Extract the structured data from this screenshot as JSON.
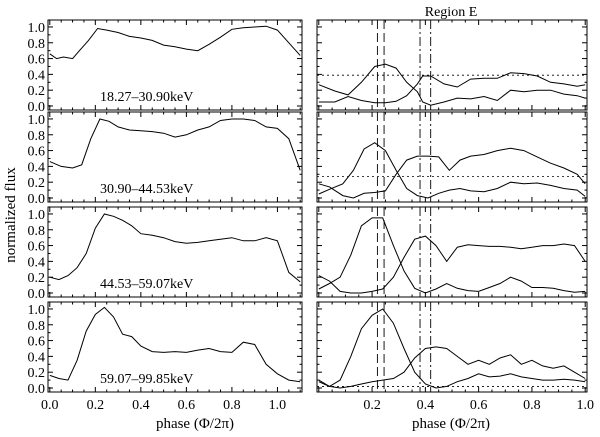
{
  "chart_data": [
    {
      "type": "line",
      "title": "",
      "xlabel": "",
      "ylabel": "normalized flux",
      "label": "18.27–30.90keV",
      "xlim": [
        0.0,
        1.1
      ],
      "ylim": [
        0.0,
        1.05
      ],
      "ytick_labels": [
        "0.0",
        "0.2",
        "0.4",
        "0.6",
        "0.8",
        "1.0"
      ],
      "series": [
        {
          "x": [
            0.0,
            0.03,
            0.06,
            0.1,
            0.13,
            0.17,
            0.21,
            0.25,
            0.3,
            0.35,
            0.4,
            0.45,
            0.5,
            0.55,
            0.6,
            0.65,
            0.7,
            0.75,
            0.8,
            0.85,
            0.9,
            0.95,
            1.0,
            1.05,
            1.1
          ],
          "y": [
            0.66,
            0.6,
            0.62,
            0.6,
            0.7,
            0.83,
            0.98,
            0.96,
            0.93,
            0.88,
            0.86,
            0.83,
            0.77,
            0.75,
            0.72,
            0.7,
            0.78,
            0.87,
            0.97,
            0.99,
            1.0,
            1.01,
            0.96,
            0.8,
            0.64
          ]
        }
      ]
    },
    {
      "type": "line",
      "title": "Region E",
      "xlabel": "",
      "ylabel": "",
      "xlim": [
        0.0,
        1.0
      ],
      "ylim": [
        0.0,
        1.05
      ],
      "hline": 0.39,
      "vlines_dashed": [
        0.22,
        0.245
      ],
      "vlines_dashdot": [
        0.38,
        0.42
      ],
      "series": [
        {
          "x": [
            0.0,
            0.06,
            0.11,
            0.16,
            0.21,
            0.25,
            0.29,
            0.33,
            0.37,
            0.39,
            0.42,
            0.47,
            0.52,
            0.57,
            0.62,
            0.67,
            0.72,
            0.77,
            0.82,
            0.87,
            0.92,
            0.97,
            1.0
          ],
          "y": [
            0.27,
            0.19,
            0.14,
            0.3,
            0.5,
            0.53,
            0.48,
            0.3,
            0.18,
            0.05,
            0.01,
            0.05,
            0.1,
            0.09,
            0.12,
            0.07,
            0.2,
            0.18,
            0.2,
            0.2,
            0.15,
            0.13,
            0.1
          ]
        },
        {
          "x": [
            0.0,
            0.06,
            0.11,
            0.16,
            0.21,
            0.25,
            0.29,
            0.33,
            0.37,
            0.39,
            0.42,
            0.47,
            0.52,
            0.57,
            0.62,
            0.67,
            0.72,
            0.77,
            0.82,
            0.87,
            0.92,
            0.97,
            1.0
          ],
          "y": [
            0.05,
            0.05,
            0.12,
            0.07,
            0.04,
            0.04,
            0.06,
            0.13,
            0.28,
            0.38,
            0.38,
            0.28,
            0.24,
            0.34,
            0.35,
            0.35,
            0.42,
            0.41,
            0.38,
            0.3,
            0.28,
            0.25,
            0.27
          ]
        }
      ]
    },
    {
      "type": "line",
      "title": "",
      "xlabel": "",
      "ylabel": "normalized flux",
      "label": "30.90–44.53keV",
      "xlim": [
        0.0,
        1.1
      ],
      "ylim": [
        0.0,
        1.05
      ],
      "ytick_labels": [
        "0.0",
        "0.2",
        "0.4",
        "0.6",
        "0.8",
        "1.0"
      ],
      "series": [
        {
          "x": [
            0.0,
            0.05,
            0.1,
            0.14,
            0.18,
            0.22,
            0.26,
            0.3,
            0.35,
            0.4,
            0.45,
            0.5,
            0.55,
            0.6,
            0.65,
            0.7,
            0.75,
            0.8,
            0.85,
            0.9,
            0.95,
            1.0,
            1.05,
            1.1
          ],
          "y": [
            0.46,
            0.4,
            0.38,
            0.42,
            0.75,
            1.0,
            0.97,
            0.9,
            0.86,
            0.85,
            0.84,
            0.82,
            0.77,
            0.8,
            0.86,
            0.9,
            0.98,
            1.0,
            1.0,
            0.98,
            0.9,
            0.88,
            0.75,
            0.35
          ]
        }
      ]
    },
    {
      "type": "line",
      "title": "",
      "xlabel": "",
      "ylabel": "",
      "xlim": [
        0.0,
        1.0
      ],
      "ylim": [
        0.0,
        1.05
      ],
      "hline": 0.27,
      "vlines_dashed": [
        0.22,
        0.245
      ],
      "vlines_dashdot": [
        0.38,
        0.42
      ],
      "series": [
        {
          "x": [
            0.0,
            0.04,
            0.09,
            0.13,
            0.17,
            0.21,
            0.25,
            0.29,
            0.33,
            0.37,
            0.41,
            0.45,
            0.49,
            0.53,
            0.57,
            0.62,
            0.67,
            0.72,
            0.77,
            0.82,
            0.87,
            0.92,
            0.97,
            1.0
          ],
          "y": [
            0.05,
            0.11,
            0.18,
            0.35,
            0.62,
            0.7,
            0.6,
            0.35,
            0.12,
            0.03,
            0.0,
            0.06,
            0.1,
            0.12,
            0.09,
            0.08,
            0.12,
            0.2,
            0.18,
            0.19,
            0.16,
            0.12,
            0.1,
            0.02
          ]
        },
        {
          "x": [
            0.0,
            0.04,
            0.09,
            0.13,
            0.17,
            0.21,
            0.25,
            0.29,
            0.33,
            0.37,
            0.41,
            0.45,
            0.49,
            0.53,
            0.57,
            0.62,
            0.67,
            0.72,
            0.77,
            0.82,
            0.87,
            0.92,
            0.97,
            1.0
          ],
          "y": [
            0.18,
            0.14,
            0.03,
            0.0,
            0.06,
            0.07,
            0.09,
            0.3,
            0.48,
            0.53,
            0.53,
            0.52,
            0.35,
            0.48,
            0.53,
            0.55,
            0.6,
            0.63,
            0.6,
            0.52,
            0.44,
            0.38,
            0.3,
            0.18
          ]
        }
      ]
    },
    {
      "type": "line",
      "title": "",
      "xlabel": "",
      "ylabel": "normalized flux",
      "label": "44.53–59.07keV",
      "xlim": [
        0.0,
        1.1
      ],
      "ylim": [
        0.0,
        1.05
      ],
      "ytick_labels": [
        "0.0",
        "0.2",
        "0.4",
        "0.6",
        "0.8",
        "1.0"
      ],
      "series": [
        {
          "x": [
            0.0,
            0.04,
            0.08,
            0.12,
            0.16,
            0.2,
            0.24,
            0.28,
            0.32,
            0.36,
            0.4,
            0.45,
            0.5,
            0.55,
            0.6,
            0.65,
            0.7,
            0.75,
            0.8,
            0.85,
            0.9,
            0.95,
            1.0,
            1.05,
            1.1
          ],
          "y": [
            0.2,
            0.17,
            0.22,
            0.32,
            0.5,
            0.82,
            1.0,
            0.97,
            0.92,
            0.85,
            0.75,
            0.73,
            0.7,
            0.65,
            0.63,
            0.64,
            0.66,
            0.68,
            0.7,
            0.66,
            0.66,
            0.7,
            0.66,
            0.26,
            0.14
          ]
        }
      ]
    },
    {
      "type": "line",
      "title": "",
      "xlabel": "",
      "ylabel": "",
      "xlim": [
        0.0,
        1.0
      ],
      "ylim": [
        0.0,
        1.05
      ],
      "vlines_dashed": [
        0.22,
        0.245
      ],
      "vlines_dashdot": [
        0.38,
        0.42
      ],
      "series": [
        {
          "x": [
            0.0,
            0.04,
            0.08,
            0.12,
            0.16,
            0.2,
            0.24,
            0.28,
            0.32,
            0.36,
            0.4,
            0.44,
            0.48,
            0.52,
            0.56,
            0.6,
            0.64,
            0.68,
            0.72,
            0.76,
            0.8,
            0.84,
            0.88,
            0.92,
            0.96,
            1.0
          ],
          "y": [
            0.05,
            0.12,
            0.2,
            0.48,
            0.85,
            0.95,
            0.95,
            0.6,
            0.28,
            0.06,
            0.0,
            0.05,
            0.12,
            0.06,
            0.03,
            0.02,
            0.07,
            0.12,
            0.2,
            0.15,
            0.07,
            0.07,
            0.06,
            0.03,
            0.01,
            0.02
          ]
        },
        {
          "x": [
            0.0,
            0.04,
            0.08,
            0.12,
            0.16,
            0.2,
            0.24,
            0.28,
            0.32,
            0.36,
            0.4,
            0.44,
            0.48,
            0.52,
            0.56,
            0.6,
            0.64,
            0.68,
            0.72,
            0.76,
            0.8,
            0.84,
            0.88,
            0.92,
            0.96,
            1.0
          ],
          "y": [
            0.22,
            0.15,
            0.02,
            0.0,
            0.0,
            0.02,
            0.05,
            0.2,
            0.45,
            0.68,
            0.72,
            0.6,
            0.4,
            0.58,
            0.61,
            0.6,
            0.59,
            0.59,
            0.58,
            0.56,
            0.58,
            0.6,
            0.6,
            0.62,
            0.6,
            0.4
          ]
        }
      ]
    },
    {
      "type": "line",
      "title": "",
      "xlabel": "phase (Φ/2π)",
      "ylabel": "normalized flux",
      "label": "59.07–99.85keV",
      "xlim": [
        0.0,
        1.1
      ],
      "ylim": [
        0.0,
        1.05
      ],
      "xtick_labels": [
        "0.0",
        "0.2",
        "0.4",
        "0.6",
        "0.8",
        "1.0"
      ],
      "ytick_labels": [
        "0.0",
        "0.2",
        "0.4",
        "0.6",
        "0.8",
        "1.0"
      ],
      "series": [
        {
          "x": [
            0.0,
            0.04,
            0.08,
            0.12,
            0.16,
            0.2,
            0.24,
            0.28,
            0.32,
            0.36,
            0.4,
            0.45,
            0.5,
            0.55,
            0.6,
            0.65,
            0.7,
            0.75,
            0.8,
            0.85,
            0.9,
            0.95,
            1.0,
            1.05,
            1.1
          ],
          "y": [
            0.16,
            0.12,
            0.1,
            0.35,
            0.72,
            0.93,
            1.02,
            0.9,
            0.68,
            0.65,
            0.53,
            0.46,
            0.45,
            0.46,
            0.45,
            0.48,
            0.5,
            0.46,
            0.45,
            0.58,
            0.55,
            0.3,
            0.18,
            0.1,
            0.08
          ]
        }
      ]
    },
    {
      "type": "line",
      "title": "",
      "xlabel": "phase (Φ/2π)",
      "ylabel": "",
      "xlim": [
        0.0,
        1.0
      ],
      "ylim": [
        0.0,
        1.05
      ],
      "hline": 0.02,
      "xtick_labels": [
        "0.2",
        "0.4",
        "0.6",
        "0.8",
        "1.0"
      ],
      "vlines_dashed": [
        0.22,
        0.245
      ],
      "vlines_dashdot": [
        0.38,
        0.42
      ],
      "series": [
        {
          "x": [
            0.0,
            0.04,
            0.08,
            0.12,
            0.16,
            0.2,
            0.24,
            0.28,
            0.32,
            0.36,
            0.4,
            0.44,
            0.48,
            0.52,
            0.56,
            0.6,
            0.64,
            0.68,
            0.72,
            0.76,
            0.8,
            0.84,
            0.88,
            0.92,
            0.96,
            1.0
          ],
          "y": [
            0.08,
            0.02,
            0.1,
            0.4,
            0.75,
            0.92,
            1.0,
            0.82,
            0.5,
            0.2,
            0.05,
            0.0,
            0.02,
            0.08,
            0.12,
            0.18,
            0.14,
            0.15,
            0.18,
            0.14,
            0.12,
            0.1,
            0.1,
            0.11,
            0.1,
            0.08
          ]
        },
        {
          "x": [
            0.0,
            0.04,
            0.08,
            0.12,
            0.16,
            0.2,
            0.24,
            0.28,
            0.32,
            0.36,
            0.4,
            0.44,
            0.48,
            0.52,
            0.56,
            0.6,
            0.64,
            0.68,
            0.72,
            0.76,
            0.8,
            0.84,
            0.88,
            0.92,
            0.96,
            1.0
          ],
          "y": [
            0.1,
            0.02,
            0.0,
            0.02,
            0.05,
            0.08,
            0.1,
            0.12,
            0.2,
            0.38,
            0.5,
            0.52,
            0.5,
            0.4,
            0.3,
            0.35,
            0.3,
            0.38,
            0.42,
            0.3,
            0.35,
            0.28,
            0.25,
            0.28,
            0.2,
            0.12
          ]
        }
      ]
    }
  ]
}
